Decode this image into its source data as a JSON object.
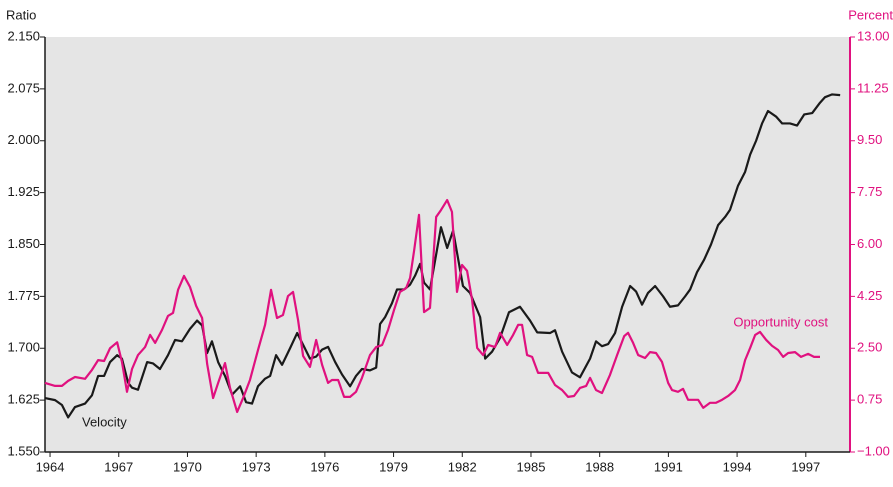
{
  "chart_data": {
    "type": "line",
    "y_label": "Ratio",
    "y2_label": "Percent",
    "xlim": [
      1963.78,
      1998.93
    ],
    "xticks": [
      1964,
      1967,
      1970,
      1973,
      1976,
      1979,
      1982,
      1985,
      1988,
      1991,
      1994,
      1997
    ],
    "ylim": [
      1.55,
      2.15
    ],
    "yticks": [
      {
        "value": 1.55,
        "label": "1.550"
      },
      {
        "value": 1.625,
        "label": "1.625"
      },
      {
        "value": 1.7,
        "label": "1.700"
      },
      {
        "value": 1.775,
        "label": "1.775"
      },
      {
        "value": 1.85,
        "label": "1.850"
      },
      {
        "value": 1.925,
        "label": "1.925"
      },
      {
        "value": 2.0,
        "label": "2.000"
      },
      {
        "value": 2.075,
        "label": "2.075"
      },
      {
        "value": 2.15,
        "label": "2.150"
      }
    ],
    "y2lim": [
      -1,
      13
    ],
    "y2ticks": [
      {
        "value": -1,
        "label": "−1.00"
      },
      {
        "value": 0.75,
        "label": "0.75"
      },
      {
        "value": 2.5,
        "label": "2.50"
      },
      {
        "value": 4.25,
        "label": "4.25"
      },
      {
        "value": 6,
        "label": "6.00"
      },
      {
        "value": 7.75,
        "label": "7.75"
      },
      {
        "value": 9.5,
        "label": "9.50"
      },
      {
        "value": 11.25,
        "label": "11.25"
      },
      {
        "value": 13,
        "label": "13.00"
      }
    ],
    "series": [
      {
        "name": "Velocity",
        "color": "#1a1a1a",
        "x": [
          1963.78,
          1964.22,
          1964.52,
          1964.79,
          1965.09,
          1965.53,
          1965.83,
          1966.1,
          1966.36,
          1966.62,
          1966.93,
          1967.14,
          1967.41,
          1967.58,
          1967.84,
          1968.24,
          1968.5,
          1968.8,
          1969.15,
          1969.46,
          1969.76,
          1970.11,
          1970.42,
          1970.64,
          1970.86,
          1971.07,
          1971.34,
          1971.64,
          1971.95,
          1972.3,
          1972.56,
          1972.82,
          1973.08,
          1973.39,
          1973.61,
          1973.87,
          1974.13,
          1974.48,
          1974.79,
          1975.05,
          1975.35,
          1975.62,
          1975.88,
          1976.14,
          1976.45,
          1976.75,
          1977.1,
          1977.36,
          1977.62,
          1977.97,
          1978.24,
          1978.41,
          1978.63,
          1978.93,
          1979.15,
          1979.46,
          1979.72,
          1979.94,
          1980.16,
          1980.33,
          1980.59,
          1981.07,
          1981.34,
          1981.6,
          1982.03,
          1982.34,
          1982.78,
          1983.0,
          1983.3,
          1983.65,
          1984.04,
          1984.52,
          1984.96,
          1985.27,
          1985.83,
          1986.05,
          1986.36,
          1986.79,
          1987.14,
          1987.58,
          1987.84,
          1988.1,
          1988.37,
          1988.67,
          1988.98,
          1989.33,
          1989.59,
          1989.85,
          1990.11,
          1990.42,
          1990.77,
          1991.07,
          1991.42,
          1991.73,
          1991.95,
          1992.25,
          1992.56,
          1992.86,
          1993.17,
          1993.48,
          1993.69,
          1994.04,
          1994.35,
          1994.57,
          1994.83,
          1995.09,
          1995.35,
          1995.7,
          1995.97,
          1996.31,
          1996.62,
          1996.93,
          1997.28,
          1997.62,
          1997.84,
          1998.15,
          1998.5
        ],
        "values": [
          1.628,
          1.625,
          1.618,
          1.6,
          1.615,
          1.62,
          1.632,
          1.66,
          1.66,
          1.68,
          1.69,
          1.685,
          1.65,
          1.643,
          1.64,
          1.68,
          1.678,
          1.67,
          1.69,
          1.712,
          1.71,
          1.728,
          1.74,
          1.733,
          1.693,
          1.71,
          1.68,
          1.66,
          1.633,
          1.645,
          1.622,
          1.62,
          1.645,
          1.656,
          1.66,
          1.69,
          1.676,
          1.7,
          1.722,
          1.705,
          1.685,
          1.688,
          1.698,
          1.702,
          1.68,
          1.662,
          1.645,
          1.66,
          1.67,
          1.668,
          1.672,
          1.735,
          1.745,
          1.765,
          1.785,
          1.785,
          1.792,
          1.805,
          1.822,
          1.795,
          1.785,
          1.875,
          1.845,
          1.87,
          1.79,
          1.78,
          1.745,
          1.685,
          1.695,
          1.715,
          1.752,
          1.76,
          1.74,
          1.723,
          1.722,
          1.726,
          1.695,
          1.665,
          1.658,
          1.685,
          1.71,
          1.703,
          1.706,
          1.722,
          1.76,
          1.79,
          1.782,
          1.763,
          1.78,
          1.79,
          1.775,
          1.76,
          1.762,
          1.775,
          1.785,
          1.81,
          1.828,
          1.85,
          1.878,
          1.89,
          1.9,
          1.935,
          1.955,
          1.98,
          2.0,
          2.025,
          2.043,
          2.035,
          2.025,
          2.025,
          2.022,
          2.038,
          2.04,
          2.055,
          2.063,
          2.067,
          2.066
        ]
      },
      {
        "name": "Opportunity cost",
        "color": "#e0117f",
        "axis": "y2",
        "x": [
          1963.78,
          1964.22,
          1964.52,
          1964.79,
          1965.09,
          1965.53,
          1965.83,
          1966.1,
          1966.36,
          1966.62,
          1966.93,
          1967.14,
          1967.36,
          1967.58,
          1967.84,
          1968.15,
          1968.37,
          1968.59,
          1968.89,
          1969.15,
          1969.37,
          1969.59,
          1969.85,
          1970.11,
          1970.38,
          1970.64,
          1970.86,
          1971.12,
          1971.34,
          1971.64,
          1971.86,
          1972.17,
          1972.43,
          1972.73,
          1973.08,
          1973.39,
          1973.65,
          1973.91,
          1974.17,
          1974.39,
          1974.61,
          1974.83,
          1975.05,
          1975.35,
          1975.62,
          1975.88,
          1976.14,
          1976.31,
          1976.58,
          1976.84,
          1977.1,
          1977.36,
          1977.62,
          1977.97,
          1978.24,
          1978.5,
          1978.76,
          1979.02,
          1979.28,
          1979.55,
          1979.72,
          1979.9,
          1980.11,
          1980.33,
          1980.59,
          1980.86,
          1981.07,
          1981.34,
          1981.55,
          1981.77,
          1981.99,
          1982.21,
          1982.43,
          1982.65,
          1982.91,
          1983.13,
          1983.43,
          1983.65,
          1983.96,
          1984.22,
          1984.44,
          1984.61,
          1984.83,
          1985.05,
          1985.31,
          1985.75,
          1986.05,
          1986.36,
          1986.62,
          1986.88,
          1987.14,
          1987.41,
          1987.58,
          1987.84,
          1988.1,
          1988.45,
          1988.76,
          1989.07,
          1989.24,
          1989.46,
          1989.68,
          1989.98,
          1990.2,
          1990.46,
          1990.72,
          1990.99,
          1991.16,
          1991.42,
          1991.64,
          1991.86,
          1992.3,
          1992.52,
          1992.82,
          1993.08,
          1993.34,
          1993.61,
          1993.91,
          1994.13,
          1994.35,
          1994.57,
          1994.79,
          1995.0,
          1995.27,
          1995.53,
          1995.79,
          1996.01,
          1996.23,
          1996.53,
          1996.79,
          1997.1,
          1997.36,
          1997.62
        ],
        "values": [
          1.33,
          1.23,
          1.23,
          1.4,
          1.53,
          1.47,
          1.77,
          2.1,
          2.07,
          2.5,
          2.7,
          2.04,
          1.03,
          1.8,
          2.27,
          2.54,
          2.95,
          2.68,
          3.12,
          3.59,
          3.69,
          4.47,
          4.94,
          4.57,
          3.93,
          3.52,
          1.97,
          0.82,
          1.33,
          2.0,
          1.16,
          0.35,
          0.82,
          1.43,
          2.44,
          3.29,
          4.47,
          3.52,
          3.62,
          4.26,
          4.4,
          3.45,
          2.24,
          1.87,
          2.78,
          1.94,
          1.33,
          1.43,
          1.43,
          0.86,
          0.86,
          1.03,
          1.5,
          2.27,
          2.54,
          2.61,
          3.12,
          3.79,
          4.4,
          4.53,
          4.87,
          5.81,
          7.0,
          3.72,
          3.86,
          6.93,
          7.16,
          7.5,
          7.1,
          4.4,
          5.31,
          5.11,
          4.13,
          2.51,
          2.27,
          2.61,
          2.54,
          3.02,
          2.61,
          2.95,
          3.29,
          3.29,
          2.27,
          2.21,
          1.67,
          1.67,
          1.26,
          1.09,
          0.86,
          0.89,
          1.16,
          1.23,
          1.5,
          1.09,
          0.99,
          1.6,
          2.27,
          2.91,
          3.02,
          2.68,
          2.27,
          2.17,
          2.37,
          2.34,
          2.04,
          1.33,
          1.09,
          1.03,
          1.13,
          0.76,
          0.76,
          0.49,
          0.66,
          0.66,
          0.76,
          0.89,
          1.09,
          1.43,
          2.1,
          2.51,
          2.95,
          3.05,
          2.78,
          2.58,
          2.44,
          2.21,
          2.34,
          2.37,
          2.21,
          2.31,
          2.21,
          2.21
        ]
      }
    ]
  }
}
